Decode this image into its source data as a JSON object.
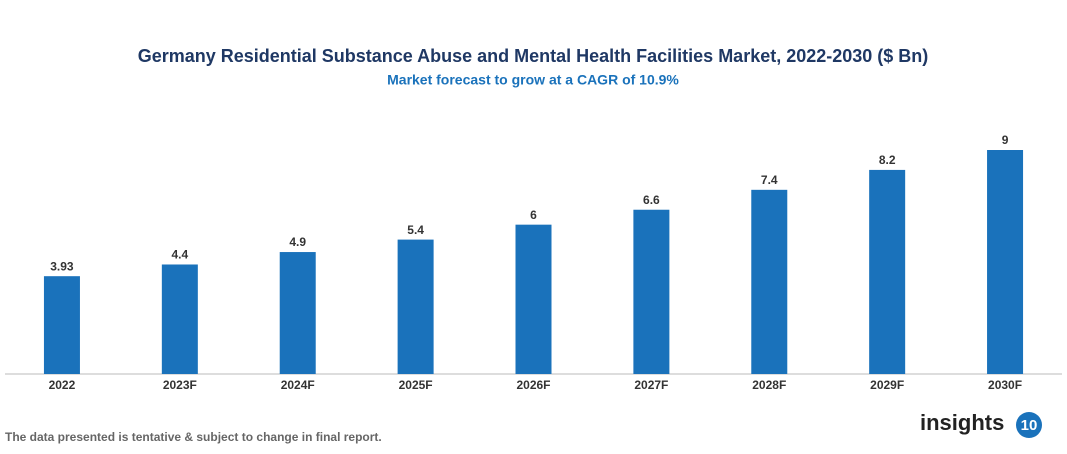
{
  "chart_data": {
    "type": "bar",
    "title": "Germany Residential Substance Abuse and Mental Health Facilities Market, 2022-2030 ($ Bn)",
    "subtitle": "Market forecast to grow at a CAGR of 10.9%",
    "categories": [
      "2022",
      "2023F",
      "2024F",
      "2025F",
      "2026F",
      "2027F",
      "2028F",
      "2029F",
      "2030F"
    ],
    "values": [
      3.93,
      4.4,
      4.9,
      5.4,
      6,
      6.6,
      7.4,
      8.2,
      9
    ],
    "color": "#1a72bb",
    "footnote": "The data presented is tentative & subject to change in final report.",
    "logo": {
      "text": "insights",
      "badge": "10"
    }
  }
}
